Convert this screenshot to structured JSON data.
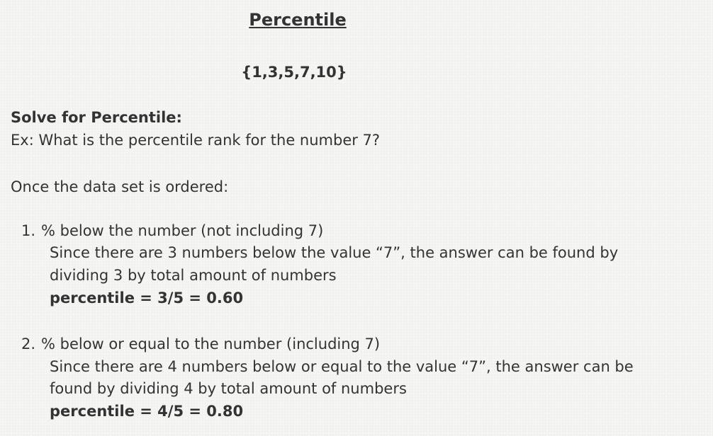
{
  "title": "Percentile",
  "data_set": "{1,3,5,7,10}",
  "solve_heading": "Solve for Percentile:",
  "example_question": "Ex: What is the percentile rank for the number 7?",
  "ordered_intro": "Once the data set is ordered:",
  "steps": [
    {
      "marker": "1.",
      "heading": "% below the number (not including 7)",
      "explanation_line1": "Since there are 3 numbers below the value “7”, the answer can be found by",
      "explanation_line2": "dividing 3 by total amount of numbers",
      "formula": "percentile = 3/5 = 0.60"
    },
    {
      "marker": "2.",
      "heading": "% below or equal to the number (including 7)",
      "explanation_line1": "Since there are 4 numbers below or equal to the value “7”, the answer can be",
      "explanation_line2": "found by dividing 4 by total amount of numbers",
      "formula": "percentile = 4/5 = 0.80"
    }
  ]
}
